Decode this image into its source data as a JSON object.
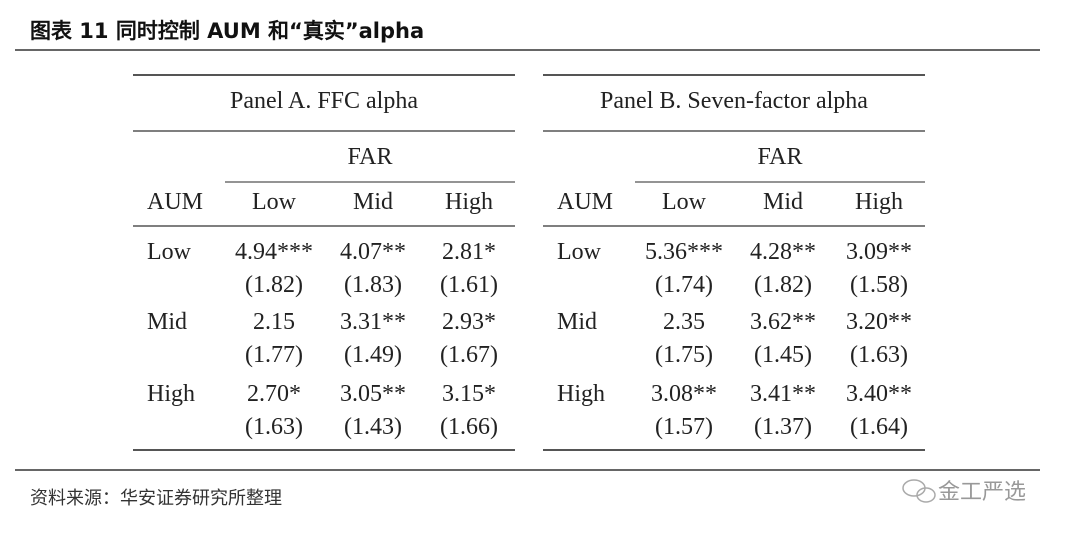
{
  "header": {
    "title": "图表 11 同时控制 AUM 和“真实”alpha"
  },
  "panels": [
    {
      "title": "Panel A. FFC alpha",
      "group_label": "FAR",
      "row_header": "AUM",
      "columns": [
        "Low",
        "Mid",
        "High"
      ],
      "rows": [
        {
          "label": "Low",
          "values": [
            "4.94***",
            "4.07**",
            "2.81*"
          ],
          "errors": [
            "(1.82)",
            "(1.83)",
            "(1.61)"
          ]
        },
        {
          "label": "Mid",
          "values": [
            "2.15",
            "3.31**",
            "2.93*"
          ],
          "errors": [
            "(1.77)",
            "(1.49)",
            "(1.67)"
          ]
        },
        {
          "label": "High",
          "values": [
            "2.70*",
            "3.05**",
            "3.15*"
          ],
          "errors": [
            "(1.63)",
            "(1.43)",
            "(1.66)"
          ]
        }
      ]
    },
    {
      "title": "Panel B. Seven-factor alpha",
      "group_label": "FAR",
      "row_header": "AUM",
      "columns": [
        "Low",
        "Mid",
        "High"
      ],
      "rows": [
        {
          "label": "Low",
          "values": [
            "5.36***",
            "4.28**",
            "3.09**"
          ],
          "errors": [
            "(1.74)",
            "(1.82)",
            "(1.58)"
          ]
        },
        {
          "label": "Mid",
          "values": [
            "2.35",
            "3.62**",
            "3.20**"
          ],
          "errors": [
            "(1.75)",
            "(1.45)",
            "(1.63)"
          ]
        },
        {
          "label": "High",
          "values": [
            "3.08**",
            "3.41**",
            "3.40**"
          ],
          "errors": [
            "(1.57)",
            "(1.37)",
            "(1.64)"
          ]
        }
      ]
    }
  ],
  "footer": {
    "source": "资料来源：华安证券研究所整理",
    "watermark": "金工严选"
  }
}
